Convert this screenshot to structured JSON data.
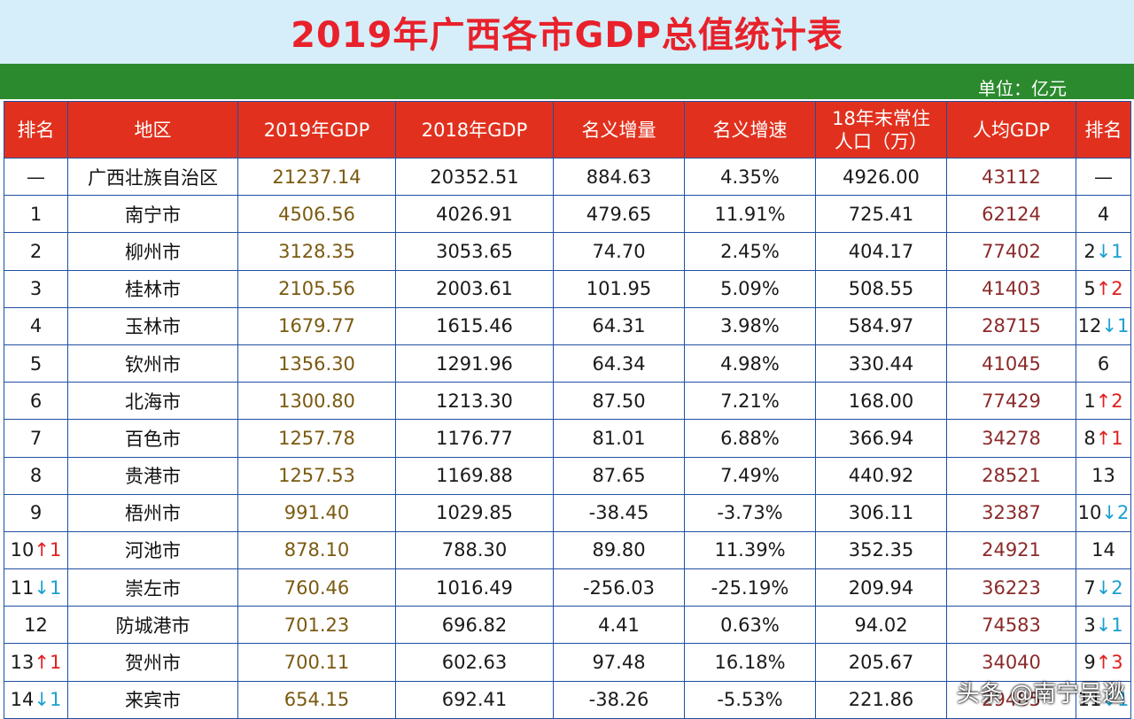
{
  "title": "2019年广西各市GDP总值统计表",
  "unit": "单位：亿元",
  "headers": [
    "排名",
    "地区",
    "2019年GDP",
    "2018年GDP",
    "名义增量",
    "名义增速",
    "18年末常住\n人口（万）",
    "人均GDP",
    "排名"
  ],
  "rows": [
    {
      "rank": "—",
      "rank_arrow": "",
      "rank_delta": "",
      "region": "广西壮族自治区",
      "gdp2019": "21237.14",
      "gdp2018": "20352.51",
      "increment": "884.63",
      "growth": "4.35%",
      "population": "4926.00",
      "per_capita": "43112",
      "pc_rank": "—",
      "pc_arrow": "",
      "pc_delta": ""
    },
    {
      "rank": "1",
      "rank_arrow": "",
      "rank_delta": "",
      "region": "南宁市",
      "gdp2019": "4506.56",
      "gdp2018": "4026.91",
      "increment": "479.65",
      "growth": "11.91%",
      "population": "725.41",
      "per_capita": "62124",
      "pc_rank": "4",
      "pc_arrow": "",
      "pc_delta": ""
    },
    {
      "rank": "2",
      "rank_arrow": "",
      "rank_delta": "",
      "region": "柳州市",
      "gdp2019": "3128.35",
      "gdp2018": "3053.65",
      "increment": "74.70",
      "growth": "2.45%",
      "population": "404.17",
      "per_capita": "77402",
      "pc_rank": "2",
      "pc_arrow": "↓",
      "pc_delta": "1"
    },
    {
      "rank": "3",
      "rank_arrow": "",
      "rank_delta": "",
      "region": "桂林市",
      "gdp2019": "2105.56",
      "gdp2018": "2003.61",
      "increment": "101.95",
      "growth": "5.09%",
      "population": "508.55",
      "per_capita": "41403",
      "pc_rank": "5",
      "pc_arrow": "↑",
      "pc_delta": "2"
    },
    {
      "rank": "4",
      "rank_arrow": "",
      "rank_delta": "",
      "region": "玉林市",
      "gdp2019": "1679.77",
      "gdp2018": "1615.46",
      "increment": "64.31",
      "growth": "3.98%",
      "population": "584.97",
      "per_capita": "28715",
      "pc_rank": "12",
      "pc_arrow": "↓",
      "pc_delta": "1"
    },
    {
      "rank": "5",
      "rank_arrow": "",
      "rank_delta": "",
      "region": "钦州市",
      "gdp2019": "1356.30",
      "gdp2018": "1291.96",
      "increment": "64.34",
      "growth": "4.98%",
      "population": "330.44",
      "per_capita": "41045",
      "pc_rank": "6",
      "pc_arrow": "",
      "pc_delta": ""
    },
    {
      "rank": "6",
      "rank_arrow": "",
      "rank_delta": "",
      "region": "北海市",
      "gdp2019": "1300.80",
      "gdp2018": "1213.30",
      "increment": "87.50",
      "growth": "7.21%",
      "population": "168.00",
      "per_capita": "77429",
      "pc_rank": "1",
      "pc_arrow": "↑",
      "pc_delta": "2"
    },
    {
      "rank": "7",
      "rank_arrow": "",
      "rank_delta": "",
      "region": "百色市",
      "gdp2019": "1257.78",
      "gdp2018": "1176.77",
      "increment": "81.01",
      "growth": "6.88%",
      "population": "366.94",
      "per_capita": "34278",
      "pc_rank": "8",
      "pc_arrow": "↑",
      "pc_delta": "1"
    },
    {
      "rank": "8",
      "rank_arrow": "",
      "rank_delta": "",
      "region": "贵港市",
      "gdp2019": "1257.53",
      "gdp2018": "1169.88",
      "increment": "87.65",
      "growth": "7.49%",
      "population": "440.92",
      "per_capita": "28521",
      "pc_rank": "13",
      "pc_arrow": "",
      "pc_delta": ""
    },
    {
      "rank": "9",
      "rank_arrow": "",
      "rank_delta": "",
      "region": "梧州市",
      "gdp2019": "991.40",
      "gdp2018": "1029.85",
      "increment": "-38.45",
      "growth": "-3.73%",
      "population": "306.11",
      "per_capita": "32387",
      "pc_rank": "10",
      "pc_arrow": "↓",
      "pc_delta": "2"
    },
    {
      "rank": "10",
      "rank_arrow": "↑",
      "rank_delta": "1",
      "region": "河池市",
      "gdp2019": "878.10",
      "gdp2018": "788.30",
      "increment": "89.80",
      "growth": "11.39%",
      "population": "352.35",
      "per_capita": "24921",
      "pc_rank": "14",
      "pc_arrow": "",
      "pc_delta": ""
    },
    {
      "rank": "11",
      "rank_arrow": "↓",
      "rank_delta": "1",
      "region": "崇左市",
      "gdp2019": "760.46",
      "gdp2018": "1016.49",
      "increment": "-256.03",
      "growth": "-25.19%",
      "population": "209.94",
      "per_capita": "36223",
      "pc_rank": "7",
      "pc_arrow": "↓",
      "pc_delta": "2"
    },
    {
      "rank": "12",
      "rank_arrow": "",
      "rank_delta": "",
      "region": "防城港市",
      "gdp2019": "701.23",
      "gdp2018": "696.82",
      "increment": "4.41",
      "growth": "0.63%",
      "population": "94.02",
      "per_capita": "74583",
      "pc_rank": "3",
      "pc_arrow": "↓",
      "pc_delta": "1"
    },
    {
      "rank": "13",
      "rank_arrow": "↑",
      "rank_delta": "1",
      "region": "贺州市",
      "gdp2019": "700.11",
      "gdp2018": "602.63",
      "increment": "97.48",
      "growth": "16.18%",
      "population": "205.67",
      "per_capita": "34040",
      "pc_rank": "9",
      "pc_arrow": "↑",
      "pc_delta": "3"
    },
    {
      "rank": "14",
      "rank_arrow": "↓",
      "rank_delta": "1",
      "region": "来宾市",
      "gdp2019": "654.15",
      "gdp2018": "692.41",
      "increment": "-38.26",
      "growth": "-5.53%",
      "population": "221.86",
      "per_capita": "29485",
      "pc_rank": "11",
      "pc_arrow": "↓",
      "pc_delta": "1"
    }
  ],
  "watermark": "头条 @南宁吴逖",
  "colors": {
    "title": "#e8212b",
    "header_bg": "#e1311e",
    "green_bar": "#2b8a2e",
    "title_bg": "#d6eef9",
    "up": "#e02020",
    "down": "#1aa0d0"
  }
}
